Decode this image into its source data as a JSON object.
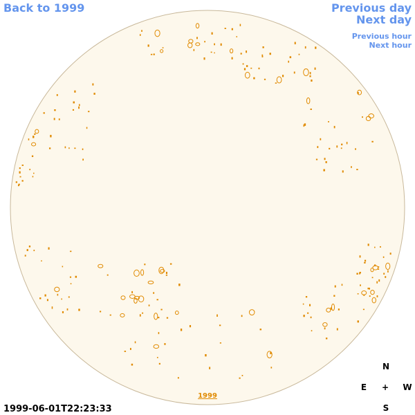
{
  "navigation": {
    "back": "Back to 1999",
    "previous_day": "Previous day",
    "next_day": "Next day",
    "previous_hour": "Previous hour",
    "next_hour": "Next hour"
  },
  "timestamp": "1999-06-01T22:23:33",
  "year_link": "1999",
  "compass": {
    "north": "N",
    "east": "E",
    "center": "+",
    "west": "W",
    "south": "S"
  }
}
